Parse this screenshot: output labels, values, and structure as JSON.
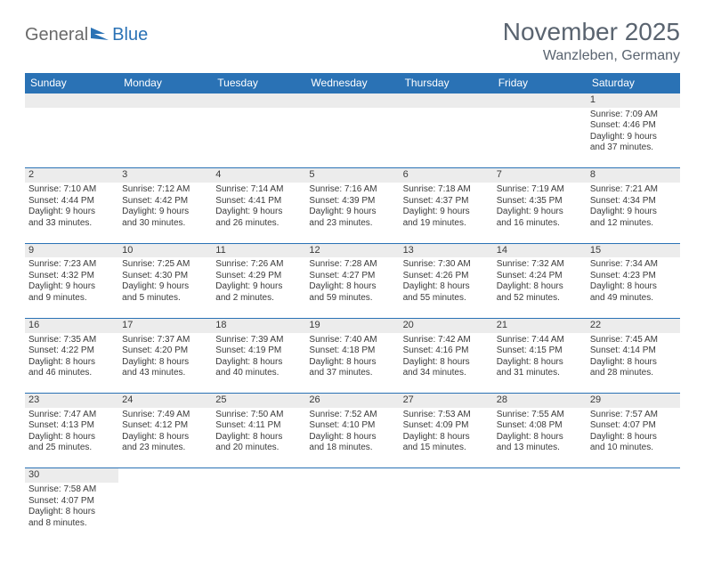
{
  "logo": {
    "part1": "General",
    "part2": "Blue"
  },
  "title": "November 2025",
  "location": "Wanzleben, Germany",
  "colors": {
    "header_bg": "#2a72b5",
    "header_text": "#ffffff",
    "daynum_bg": "#ececec",
    "border": "#2a72b5",
    "title_text": "#5a6470",
    "body_text": "#3a3a3a",
    "logo_gray": "#6a6a6a",
    "logo_blue": "#2a72b5",
    "page_bg": "#ffffff"
  },
  "fonts": {
    "title_size_pt": 21,
    "location_size_pt": 12,
    "header_size_pt": 9,
    "cell_size_pt": 7.5,
    "daynum_size_pt": 8
  },
  "weekdays": [
    "Sunday",
    "Monday",
    "Tuesday",
    "Wednesday",
    "Thursday",
    "Friday",
    "Saturday"
  ],
  "weeks": [
    {
      "blank": true,
      "days": [
        null,
        null,
        null,
        null,
        null,
        null,
        {
          "n": "1",
          "sr": "Sunrise: 7:09 AM",
          "ss": "Sunset: 4:46 PM",
          "dl1": "Daylight: 9 hours",
          "dl2": "and 37 minutes."
        }
      ]
    },
    {
      "days": [
        {
          "n": "2",
          "sr": "Sunrise: 7:10 AM",
          "ss": "Sunset: 4:44 PM",
          "dl1": "Daylight: 9 hours",
          "dl2": "and 33 minutes."
        },
        {
          "n": "3",
          "sr": "Sunrise: 7:12 AM",
          "ss": "Sunset: 4:42 PM",
          "dl1": "Daylight: 9 hours",
          "dl2": "and 30 minutes."
        },
        {
          "n": "4",
          "sr": "Sunrise: 7:14 AM",
          "ss": "Sunset: 4:41 PM",
          "dl1": "Daylight: 9 hours",
          "dl2": "and 26 minutes."
        },
        {
          "n": "5",
          "sr": "Sunrise: 7:16 AM",
          "ss": "Sunset: 4:39 PM",
          "dl1": "Daylight: 9 hours",
          "dl2": "and 23 minutes."
        },
        {
          "n": "6",
          "sr": "Sunrise: 7:18 AM",
          "ss": "Sunset: 4:37 PM",
          "dl1": "Daylight: 9 hours",
          "dl2": "and 19 minutes."
        },
        {
          "n": "7",
          "sr": "Sunrise: 7:19 AM",
          "ss": "Sunset: 4:35 PM",
          "dl1": "Daylight: 9 hours",
          "dl2": "and 16 minutes."
        },
        {
          "n": "8",
          "sr": "Sunrise: 7:21 AM",
          "ss": "Sunset: 4:34 PM",
          "dl1": "Daylight: 9 hours",
          "dl2": "and 12 minutes."
        }
      ]
    },
    {
      "days": [
        {
          "n": "9",
          "sr": "Sunrise: 7:23 AM",
          "ss": "Sunset: 4:32 PM",
          "dl1": "Daylight: 9 hours",
          "dl2": "and 9 minutes."
        },
        {
          "n": "10",
          "sr": "Sunrise: 7:25 AM",
          "ss": "Sunset: 4:30 PM",
          "dl1": "Daylight: 9 hours",
          "dl2": "and 5 minutes."
        },
        {
          "n": "11",
          "sr": "Sunrise: 7:26 AM",
          "ss": "Sunset: 4:29 PM",
          "dl1": "Daylight: 9 hours",
          "dl2": "and 2 minutes."
        },
        {
          "n": "12",
          "sr": "Sunrise: 7:28 AM",
          "ss": "Sunset: 4:27 PM",
          "dl1": "Daylight: 8 hours",
          "dl2": "and 59 minutes."
        },
        {
          "n": "13",
          "sr": "Sunrise: 7:30 AM",
          "ss": "Sunset: 4:26 PM",
          "dl1": "Daylight: 8 hours",
          "dl2": "and 55 minutes."
        },
        {
          "n": "14",
          "sr": "Sunrise: 7:32 AM",
          "ss": "Sunset: 4:24 PM",
          "dl1": "Daylight: 8 hours",
          "dl2": "and 52 minutes."
        },
        {
          "n": "15",
          "sr": "Sunrise: 7:34 AM",
          "ss": "Sunset: 4:23 PM",
          "dl1": "Daylight: 8 hours",
          "dl2": "and 49 minutes."
        }
      ]
    },
    {
      "days": [
        {
          "n": "16",
          "sr": "Sunrise: 7:35 AM",
          "ss": "Sunset: 4:22 PM",
          "dl1": "Daylight: 8 hours",
          "dl2": "and 46 minutes."
        },
        {
          "n": "17",
          "sr": "Sunrise: 7:37 AM",
          "ss": "Sunset: 4:20 PM",
          "dl1": "Daylight: 8 hours",
          "dl2": "and 43 minutes."
        },
        {
          "n": "18",
          "sr": "Sunrise: 7:39 AM",
          "ss": "Sunset: 4:19 PM",
          "dl1": "Daylight: 8 hours",
          "dl2": "and 40 minutes."
        },
        {
          "n": "19",
          "sr": "Sunrise: 7:40 AM",
          "ss": "Sunset: 4:18 PM",
          "dl1": "Daylight: 8 hours",
          "dl2": "and 37 minutes."
        },
        {
          "n": "20",
          "sr": "Sunrise: 7:42 AM",
          "ss": "Sunset: 4:16 PM",
          "dl1": "Daylight: 8 hours",
          "dl2": "and 34 minutes."
        },
        {
          "n": "21",
          "sr": "Sunrise: 7:44 AM",
          "ss": "Sunset: 4:15 PM",
          "dl1": "Daylight: 8 hours",
          "dl2": "and 31 minutes."
        },
        {
          "n": "22",
          "sr": "Sunrise: 7:45 AM",
          "ss": "Sunset: 4:14 PM",
          "dl1": "Daylight: 8 hours",
          "dl2": "and 28 minutes."
        }
      ]
    },
    {
      "days": [
        {
          "n": "23",
          "sr": "Sunrise: 7:47 AM",
          "ss": "Sunset: 4:13 PM",
          "dl1": "Daylight: 8 hours",
          "dl2": "and 25 minutes."
        },
        {
          "n": "24",
          "sr": "Sunrise: 7:49 AM",
          "ss": "Sunset: 4:12 PM",
          "dl1": "Daylight: 8 hours",
          "dl2": "and 23 minutes."
        },
        {
          "n": "25",
          "sr": "Sunrise: 7:50 AM",
          "ss": "Sunset: 4:11 PM",
          "dl1": "Daylight: 8 hours",
          "dl2": "and 20 minutes."
        },
        {
          "n": "26",
          "sr": "Sunrise: 7:52 AM",
          "ss": "Sunset: 4:10 PM",
          "dl1": "Daylight: 8 hours",
          "dl2": "and 18 minutes."
        },
        {
          "n": "27",
          "sr": "Sunrise: 7:53 AM",
          "ss": "Sunset: 4:09 PM",
          "dl1": "Daylight: 8 hours",
          "dl2": "and 15 minutes."
        },
        {
          "n": "28",
          "sr": "Sunrise: 7:55 AM",
          "ss": "Sunset: 4:08 PM",
          "dl1": "Daylight: 8 hours",
          "dl2": "and 13 minutes."
        },
        {
          "n": "29",
          "sr": "Sunrise: 7:57 AM",
          "ss": "Sunset: 4:07 PM",
          "dl1": "Daylight: 8 hours",
          "dl2": "and 10 minutes."
        }
      ]
    },
    {
      "noborder": true,
      "days": [
        {
          "n": "30",
          "sr": "Sunrise: 7:58 AM",
          "ss": "Sunset: 4:07 PM",
          "dl1": "Daylight: 8 hours",
          "dl2": "and 8 minutes."
        },
        null,
        null,
        null,
        null,
        null,
        null
      ]
    }
  ]
}
